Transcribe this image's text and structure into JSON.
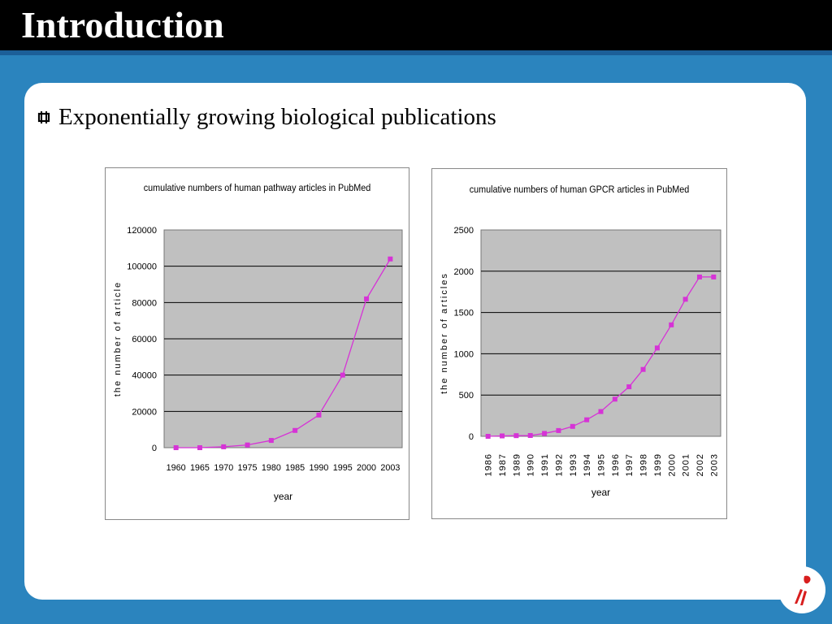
{
  "title": "Introduction",
  "bullet": {
    "icon": "square-bullet-icon",
    "text": "Exponentially growing biological publications"
  },
  "colors": {
    "background": "#2b84be",
    "title_bar": "#000000",
    "plot_area": "#c0c0c0",
    "series": "#d633d6"
  },
  "logo": {
    "icon": "red-flame-logo-icon"
  },
  "chart_data": [
    {
      "type": "line",
      "title": "cumulative numbers of human pathway articles in PubMed",
      "xlabel": "year",
      "ylabel": "the number of article",
      "categories": [
        "1960",
        "1965",
        "1970",
        "1975",
        "1980",
        "1985",
        "1990",
        "1995",
        "2000",
        "2003"
      ],
      "values": [
        0,
        0,
        500,
        1500,
        4000,
        9500,
        18000,
        40000,
        82000,
        104000
      ],
      "ylim": [
        0,
        120000
      ],
      "yticks": [
        "0",
        "20000",
        "40000",
        "60000",
        "80000",
        "100000",
        "120000"
      ],
      "grid": true
    },
    {
      "type": "line",
      "title": "cumulative numbers of human GPCR articles in PubMed",
      "xlabel": "year",
      "ylabel": "the number of articles",
      "categories": [
        "1986",
        "1987",
        "1989",
        "1990",
        "1991",
        "1992",
        "1993",
        "1994",
        "1995",
        "1996",
        "1997",
        "1998",
        "1999",
        "2000",
        "2001",
        "2002",
        "2003"
      ],
      "values": [
        0,
        5,
        8,
        10,
        35,
        70,
        120,
        200,
        300,
        450,
        600,
        810,
        1070,
        1350,
        1660,
        1930,
        1930
      ],
      "ylim": [
        0,
        2500
      ],
      "yticks": [
        "0",
        "500",
        "1000",
        "1500",
        "2000",
        "2500"
      ],
      "grid": true
    }
  ]
}
